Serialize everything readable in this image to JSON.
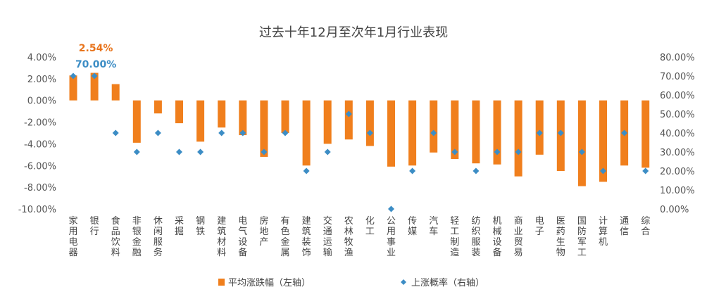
{
  "chart_data": {
    "type": "bar",
    "title": "过去十年12月至次年1月行业表现",
    "categories": [
      "家用电器",
      "银行",
      "食品饮料",
      "非银金融",
      "休闲服务",
      "采掘",
      "钢铁",
      "建筑材料",
      "电气设备",
      "房地产",
      "有色金属",
      "建筑装饰",
      "交通运输",
      "农林牧渔",
      "化工",
      "公用事业",
      "传媒",
      "汽车",
      "轻工制造",
      "纺织服装",
      "机械设备",
      "商业贸易",
      "电子",
      "医药生物",
      "国防军工",
      "计算机",
      "通信",
      "综合"
    ],
    "series": [
      {
        "name": "平均涨跌幅（左轴）",
        "type": "bar",
        "axis": "left",
        "color": "#f07f1d",
        "values": [
          2.3,
          2.54,
          1.5,
          -3.9,
          -1.2,
          -2.1,
          -3.8,
          -2.5,
          -3.2,
          -5.2,
          -3.0,
          -6.0,
          -4.0,
          -3.6,
          -4.2,
          -6.1,
          -6.0,
          -4.8,
          -5.4,
          -5.8,
          -5.9,
          -7.0,
          -5.0,
          -6.5,
          -7.9,
          -7.5,
          -6.0,
          -6.2
        ]
      },
      {
        "name": "上涨概率（右轴）",
        "type": "scatter",
        "axis": "right",
        "color": "#3c8dc5",
        "values": [
          70,
          70,
          40,
          30,
          40,
          30,
          30,
          40,
          40,
          30,
          40,
          20,
          30,
          50,
          40,
          0,
          20,
          40,
          30,
          20,
          30,
          30,
          40,
          40,
          30,
          20,
          40,
          20
        ]
      }
    ],
    "left_axis": {
      "min": -10,
      "max": 4,
      "step": 2,
      "ticks": [
        "4.00%",
        "2.00%",
        "0.00%",
        "-2.00%",
        "-4.00%",
        "-6.00%",
        "-8.00%",
        "-10.00%"
      ]
    },
    "right_axis": {
      "min": 0,
      "max": 80,
      "step": 10,
      "ticks": [
        "80.00%",
        "70.00%",
        "60.00%",
        "50.00%",
        "40.00%",
        "30.00%",
        "20.00%",
        "10.00%",
        "0.00%"
      ]
    },
    "annotations": [
      {
        "text": "2.54%",
        "category_index": 1,
        "series": "平均涨跌幅（左轴）",
        "color": "#e8741c"
      },
      {
        "text": "70.00%",
        "category_index": 1,
        "series": "上涨概率（右轴）",
        "color": "#3c8dc5"
      }
    ],
    "legend": {
      "position": "bottom"
    },
    "grid": false
  }
}
